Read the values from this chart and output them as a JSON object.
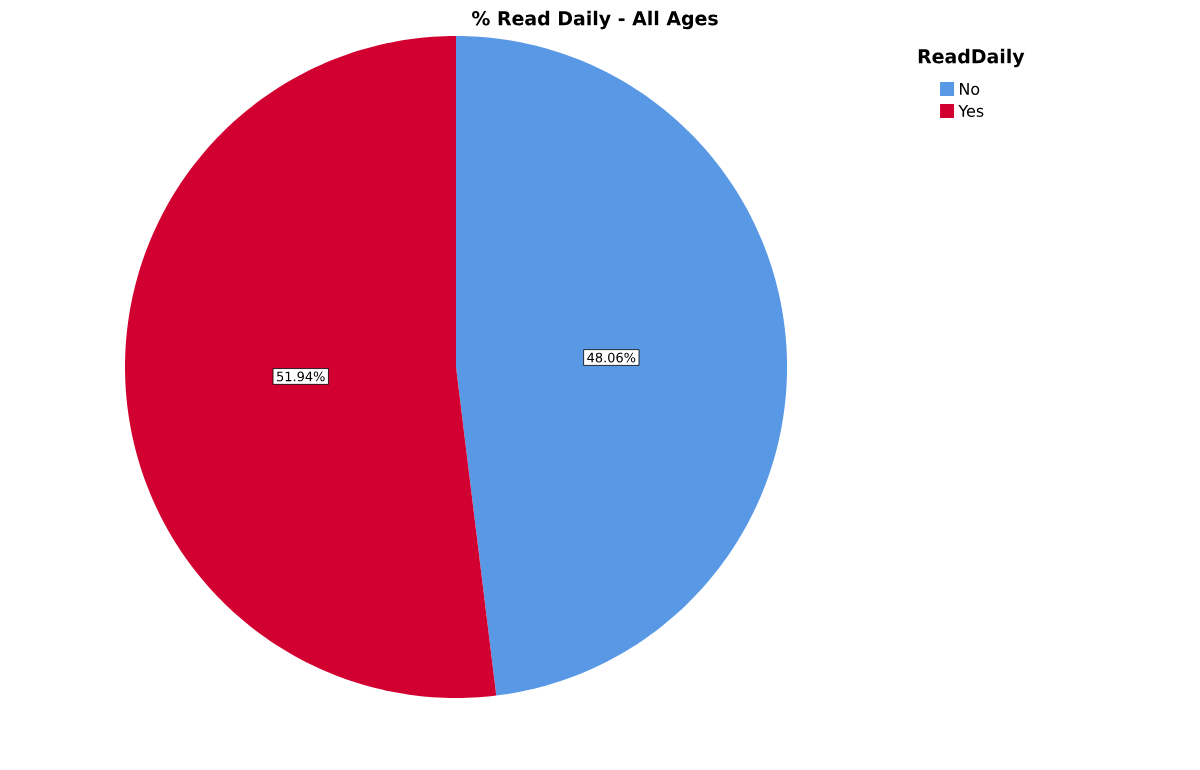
{
  "chart_data": {
    "type": "pie",
    "title": "% Read Daily - All Ages",
    "legend_title": "ReadDaily",
    "legend": "top right",
    "categories": [
      "No",
      "Yes"
    ],
    "values": [
      48.06,
      51.94
    ],
    "colors": [
      "#5898e5",
      "#d20030"
    ],
    "value_labels": [
      "48.06%",
      "51.94%"
    ]
  }
}
